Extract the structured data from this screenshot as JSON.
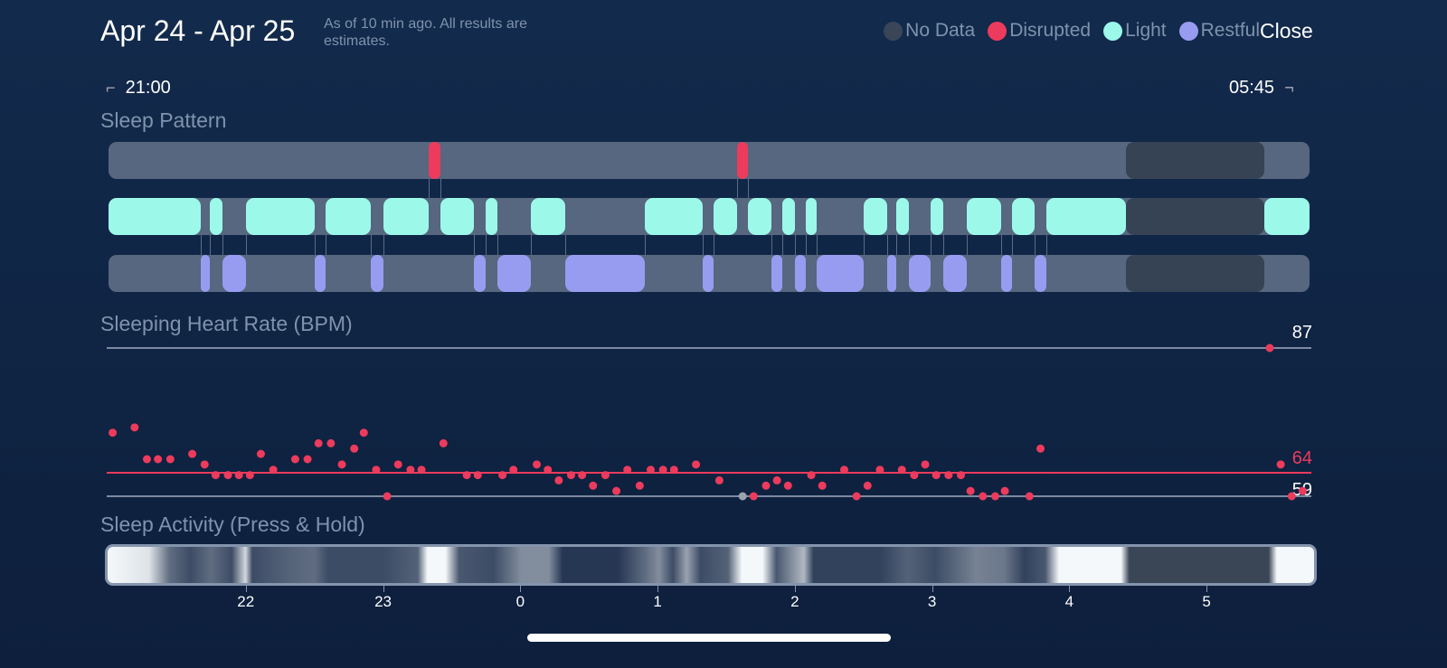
{
  "header": {
    "title": "Apr 24 - Apr 25",
    "subtitle": "As of 10 min ago. All results are estimates.",
    "close_label": "Close"
  },
  "legend": [
    {
      "label": "No Data",
      "color": "#3a4658"
    },
    {
      "label": "Disrupted",
      "color": "#ec3b5c"
    },
    {
      "label": "Light",
      "color": "#9cf9ea"
    },
    {
      "label": "Restful",
      "color": "#989cf0"
    }
  ],
  "range": {
    "start": "21:00",
    "end": "05:45",
    "start_bracket": "⌐",
    "end_bracket": "¬"
  },
  "sections": {
    "pattern": "Sleep Pattern",
    "heart": "Sleeping Heart Rate (BPM)",
    "activity": "Sleep Activity (Press & Hold)"
  },
  "chart_data": {
    "type": "timeline+scatter",
    "x_unit": "hours since 21:00",
    "x_range": [
      0,
      8.75
    ],
    "x_ticks": [
      {
        "h": 1,
        "label": "22"
      },
      {
        "h": 2,
        "label": "23"
      },
      {
        "h": 3,
        "label": "0"
      },
      {
        "h": 4,
        "label": "1"
      },
      {
        "h": 5,
        "label": "2"
      },
      {
        "h": 6,
        "label": "3"
      },
      {
        "h": 7,
        "label": "4"
      },
      {
        "h": 8,
        "label": "5"
      }
    ],
    "sleep_pattern": {
      "disrupted": [
        [
          2.33,
          2.42
        ],
        [
          4.58,
          4.66
        ]
      ],
      "light": [
        [
          0,
          0.67
        ],
        [
          0.74,
          0.83
        ],
        [
          1.0,
          1.5
        ],
        [
          1.58,
          1.91
        ],
        [
          2.0,
          2.33
        ],
        [
          2.42,
          2.66
        ],
        [
          2.75,
          2.83
        ],
        [
          3.08,
          3.33
        ],
        [
          3.91,
          4.33
        ],
        [
          4.41,
          4.58
        ],
        [
          4.66,
          4.83
        ],
        [
          4.91,
          5.0
        ],
        [
          5.08,
          5.16
        ],
        [
          5.5,
          5.67
        ],
        [
          5.74,
          5.83
        ],
        [
          5.99,
          6.08
        ],
        [
          6.25,
          6.5
        ],
        [
          6.58,
          6.75
        ],
        [
          6.83,
          7.41
        ],
        [
          8.42,
          8.75
        ]
      ],
      "restful": [
        [
          0.67,
          0.74
        ],
        [
          0.83,
          1.0
        ],
        [
          1.5,
          1.58
        ],
        [
          1.91,
          2.0
        ],
        [
          2.66,
          2.75
        ],
        [
          2.83,
          3.08
        ],
        [
          3.33,
          3.91
        ],
        [
          4.33,
          4.41
        ],
        [
          4.83,
          4.91
        ],
        [
          5.0,
          5.08
        ],
        [
          5.16,
          5.5
        ],
        [
          5.67,
          5.74
        ],
        [
          5.83,
          5.99
        ],
        [
          6.08,
          6.25
        ],
        [
          6.5,
          6.58
        ],
        [
          6.75,
          6.83
        ]
      ],
      "no_data": [
        [
          7.41,
          8.42
        ]
      ]
    },
    "heart_rate": {
      "max": 87,
      "avg": 64,
      "min": 59,
      "max_label": "87",
      "avg_label": "64",
      "min_label": "59",
      "points": [
        [
          0.03,
          71
        ],
        [
          0.19,
          72
        ],
        [
          0.28,
          66
        ],
        [
          0.36,
          66
        ],
        [
          0.45,
          66
        ],
        [
          0.61,
          67
        ],
        [
          0.7,
          65
        ],
        [
          0.78,
          63
        ],
        [
          0.87,
          63
        ],
        [
          0.95,
          63
        ],
        [
          1.03,
          63
        ],
        [
          1.11,
          67
        ],
        [
          1.2,
          64
        ],
        [
          1.36,
          66
        ],
        [
          1.45,
          66
        ],
        [
          1.53,
          69
        ],
        [
          1.62,
          69
        ],
        [
          1.7,
          65
        ],
        [
          1.79,
          68
        ],
        [
          1.86,
          71
        ],
        [
          1.95,
          64
        ],
        [
          2.03,
          59
        ],
        [
          2.11,
          65
        ],
        [
          2.2,
          64
        ],
        [
          2.28,
          64
        ],
        [
          2.44,
          69
        ],
        [
          2.61,
          63
        ],
        [
          2.69,
          63
        ],
        [
          2.87,
          63
        ],
        [
          2.95,
          64
        ],
        [
          3.12,
          65
        ],
        [
          3.2,
          64
        ],
        [
          3.28,
          62
        ],
        [
          3.37,
          63
        ],
        [
          3.45,
          63
        ],
        [
          3.53,
          61
        ],
        [
          3.62,
          63
        ],
        [
          3.7,
          60
        ],
        [
          3.78,
          64
        ],
        [
          3.87,
          61
        ],
        [
          3.95,
          64
        ],
        [
          4.04,
          64
        ],
        [
          4.12,
          64
        ],
        [
          4.28,
          65
        ],
        [
          4.45,
          62
        ],
        [
          4.62,
          59,
          "gray"
        ],
        [
          4.7,
          59
        ],
        [
          4.79,
          61
        ],
        [
          4.87,
          62
        ],
        [
          4.95,
          61
        ],
        [
          5.12,
          63
        ],
        [
          5.2,
          61
        ],
        [
          5.36,
          64
        ],
        [
          5.45,
          59
        ],
        [
          5.53,
          61
        ],
        [
          5.62,
          64
        ],
        [
          5.78,
          64
        ],
        [
          5.87,
          63
        ],
        [
          5.95,
          65
        ],
        [
          6.03,
          63
        ],
        [
          6.12,
          63
        ],
        [
          6.21,
          63
        ],
        [
          6.28,
          60
        ],
        [
          6.37,
          59
        ],
        [
          6.46,
          59
        ],
        [
          6.53,
          60
        ],
        [
          6.71,
          59
        ],
        [
          6.79,
          68
        ],
        [
          8.46,
          87
        ],
        [
          8.54,
          65
        ],
        [
          8.62,
          59
        ],
        [
          8.7,
          60
        ]
      ]
    },
    "activity": [
      [
        0,
        1
      ],
      [
        0.3,
        0.9
      ],
      [
        0.45,
        0.35
      ],
      [
        0.6,
        0.2
      ],
      [
        0.75,
        0.35
      ],
      [
        0.9,
        0.2
      ],
      [
        1.0,
        0.85
      ],
      [
        1.05,
        0.2
      ],
      [
        1.3,
        0.3
      ],
      [
        1.5,
        0.35
      ],
      [
        1.6,
        0.2
      ],
      [
        2.0,
        0.2
      ],
      [
        2.25,
        0.3
      ],
      [
        2.32,
        1
      ],
      [
        2.45,
        1
      ],
      [
        2.55,
        0.25
      ],
      [
        2.8,
        0.2
      ],
      [
        3.0,
        0.5
      ],
      [
        3.2,
        0.5
      ],
      [
        3.3,
        0.1
      ],
      [
        3.7,
        0.1
      ],
      [
        3.9,
        0.35
      ],
      [
        4.0,
        0.5
      ],
      [
        4.1,
        0.2
      ],
      [
        4.2,
        0.6
      ],
      [
        4.3,
        0.2
      ],
      [
        4.5,
        0.3
      ],
      [
        4.6,
        1
      ],
      [
        4.75,
        1
      ],
      [
        4.85,
        0.25
      ],
      [
        5.05,
        0.7
      ],
      [
        5.12,
        0.15
      ],
      [
        5.6,
        0.15
      ],
      [
        5.8,
        0.3
      ],
      [
        6.0,
        0.2
      ],
      [
        6.3,
        0.45
      ],
      [
        6.5,
        0.4
      ],
      [
        6.65,
        0.15
      ],
      [
        6.8,
        0.25
      ],
      [
        6.9,
        1
      ],
      [
        7.35,
        1
      ],
      [
        7.41,
        -1
      ],
      [
        8.42,
        -1
      ],
      [
        8.48,
        1
      ],
      [
        8.75,
        1
      ]
    ]
  }
}
